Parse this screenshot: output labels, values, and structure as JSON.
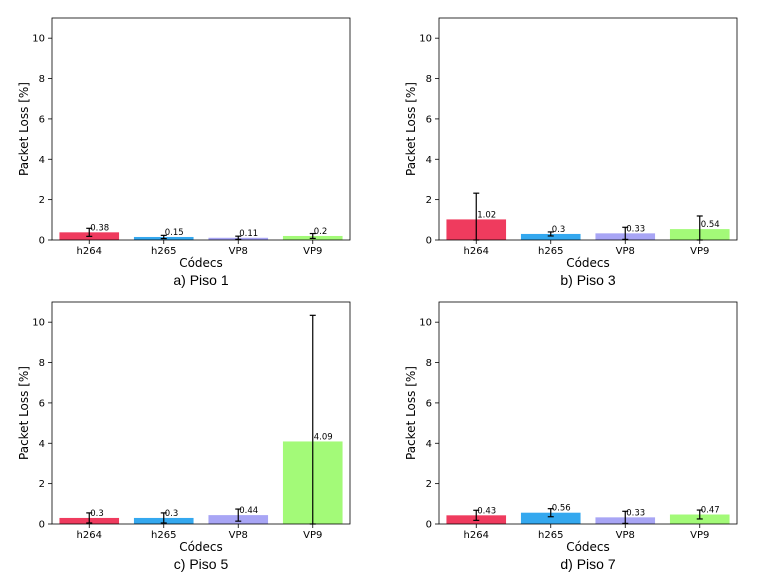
{
  "colors": {
    "h264": "#ef3b5e",
    "h265": "#34a8ef",
    "VP8": "#a8a5f5",
    "VP9": "#a3fa78",
    "error_bar": "#000000"
  },
  "chart_data": [
    {
      "type": "bar",
      "caption": "a) Piso 1",
      "xlabel": "Códecs",
      "ylabel": "Packet Loss [%]",
      "ylim": [
        0,
        11
      ],
      "yticks": [
        "0",
        "2",
        "4",
        "6",
        "8",
        "10"
      ],
      "categories": [
        "h264",
        "h265",
        "VP8",
        "VP9"
      ],
      "values": [
        0.38,
        0.15,
        0.11,
        0.2
      ],
      "value_labels": [
        "0.38",
        "0.15",
        "0.11",
        "0.2"
      ],
      "error": [
        0.2,
        0.08,
        0.08,
        0.12
      ],
      "grid": false
    },
    {
      "type": "bar",
      "caption": "b) Piso 3",
      "xlabel": "Códecs",
      "ylabel": "Packet Loss [%]",
      "ylim": [
        0,
        11
      ],
      "yticks": [
        "0",
        "2",
        "4",
        "6",
        "8",
        "10"
      ],
      "categories": [
        "h264",
        "h265",
        "VP8",
        "VP9"
      ],
      "values": [
        1.02,
        0.3,
        0.33,
        0.54
      ],
      "value_labels": [
        "1.02",
        "0.3",
        "0.33",
        "0.54"
      ],
      "error": [
        1.3,
        0.1,
        0.3,
        0.65
      ],
      "grid": false
    },
    {
      "type": "bar",
      "caption": "c) Piso 5",
      "xlabel": "Códecs",
      "ylabel": "Packet Loss [%]",
      "ylim": [
        0,
        11
      ],
      "yticks": [
        "0",
        "2",
        "4",
        "6",
        "8",
        "10"
      ],
      "categories": [
        "h264",
        "h265",
        "VP8",
        "VP9"
      ],
      "values": [
        0.3,
        0.3,
        0.44,
        4.09
      ],
      "value_labels": [
        "0.3",
        "0.3",
        "0.44",
        "4.09"
      ],
      "error": [
        0.25,
        0.25,
        0.3,
        6.25
      ],
      "grid": false
    },
    {
      "type": "bar",
      "caption": "d) Piso 7",
      "xlabel": "Códecs",
      "ylabel": "Packet Loss [%]",
      "ylim": [
        0,
        11
      ],
      "yticks": [
        "0",
        "2",
        "4",
        "6",
        "8",
        "10"
      ],
      "categories": [
        "h264",
        "h265",
        "VP8",
        "VP9"
      ],
      "values": [
        0.43,
        0.56,
        0.33,
        0.47
      ],
      "value_labels": [
        "0.43",
        "0.56",
        "0.33",
        "0.47"
      ],
      "error": [
        0.25,
        0.2,
        0.3,
        0.22
      ],
      "grid": false
    }
  ]
}
